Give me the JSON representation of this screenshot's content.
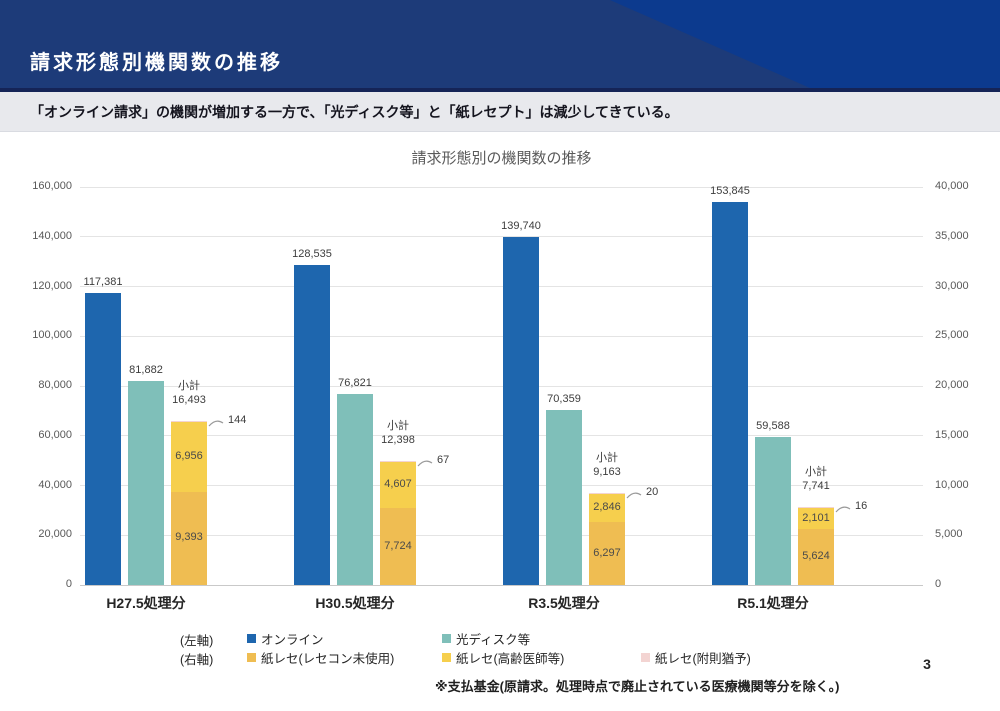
{
  "header": {
    "title": "請求形態別機関数の推移"
  },
  "subtitle": "「オンライン請求」の機関が増加する一方で、「光ディスク等」と「紙レセプト」は減少してきている。",
  "footnote": "※支払基金(原請求。処理時点で廃止されている医療機関等分を除く。)",
  "page_number": "3",
  "chart_data": {
    "type": "bar",
    "title": "請求形態別の機関数の推移",
    "categories": [
      "H27.5処理分",
      "H30.5処理分",
      "R3.5処理分",
      "R5.1処理分"
    ],
    "left_axis": {
      "label": "(左軸)",
      "min": 0,
      "max": 160000,
      "tick_step": 20000,
      "ticks": [
        "0",
        "20,000",
        "40,000",
        "60,000",
        "80,000",
        "100,000",
        "120,000",
        "140,000",
        "160,000"
      ]
    },
    "right_axis": {
      "label": "(右軸)",
      "min": 0,
      "max": 40000,
      "tick_step": 5000,
      "ticks": [
        "0",
        "5,000",
        "10,000",
        "15,000",
        "20,000",
        "25,000",
        "30,000",
        "35,000",
        "40,000"
      ]
    },
    "grid": "horizontal",
    "legend_position": "bottom",
    "series": [
      {
        "name": "オンライン",
        "axis": "left",
        "style": "column",
        "color": "#1E66AE",
        "values": [
          117381,
          128535,
          139740,
          153845
        ]
      },
      {
        "name": "光ディスク等",
        "axis": "left",
        "style": "column",
        "color": "#7FBFB9",
        "values": [
          81882,
          76821,
          70359,
          59588
        ]
      },
      {
        "name": "紙レセ(レセコン未使用)",
        "axis": "right",
        "style": "stacked-column",
        "color": "#EFBD52",
        "values": [
          9393,
          7724,
          6297,
          5624
        ]
      },
      {
        "name": "紙レセ(高齢医師等)",
        "axis": "right",
        "style": "stacked-column",
        "color": "#F6CF4D",
        "values": [
          6956,
          4607,
          2846,
          2101
        ]
      },
      {
        "name": "紙レセ(附則猶予)",
        "axis": "right",
        "style": "stacked-column",
        "color": "#F3D4D2",
        "values": [
          144,
          67,
          20,
          16
        ]
      }
    ],
    "subtotals": {
      "label": "小計",
      "values": [
        16493,
        12398,
        9163,
        7741
      ]
    },
    "legend": {
      "left_label": "(左軸)",
      "right_label": "(右軸)"
    }
  }
}
